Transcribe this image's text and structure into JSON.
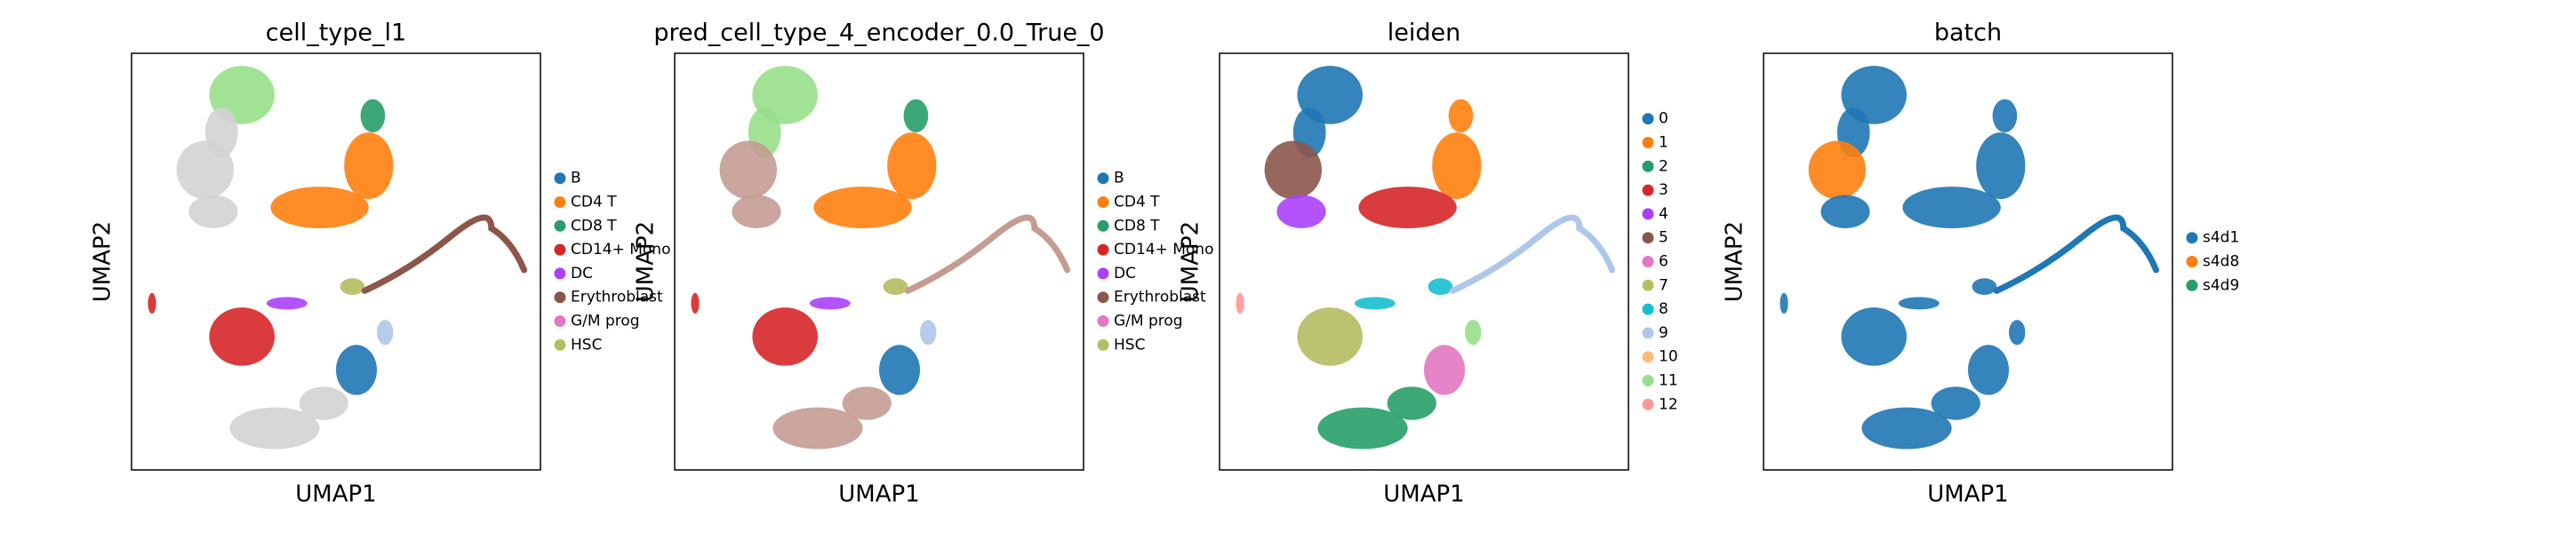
{
  "chart_data": [
    {
      "type": "scatter",
      "title": "cell_type_l1",
      "xlabel": "UMAP1",
      "ylabel": "UMAP2",
      "series": [
        {
          "name": "B",
          "color": "#1f77b4"
        },
        {
          "name": "CD4 T",
          "color": "#ff7f0e"
        },
        {
          "name": "CD8 T",
          "color": "#279e68"
        },
        {
          "name": "CD14+ Mono",
          "color": "#d62728"
        },
        {
          "name": "DC",
          "color": "#aa40fc"
        },
        {
          "name": "Erythroblast",
          "color": "#8c564b"
        },
        {
          "name": "G/M prog",
          "color": "#e377c2"
        },
        {
          "name": "HSC",
          "color": "#b5bd61"
        }
      ]
    },
    {
      "type": "scatter",
      "title": "pred_cell_type_4_encoder_0.0_True_0",
      "xlabel": "UMAP1",
      "ylabel": "UMAP2",
      "series": [
        {
          "name": "B",
          "color": "#1f77b4"
        },
        {
          "name": "CD4 T",
          "color": "#ff7f0e"
        },
        {
          "name": "CD8 T",
          "color": "#279e68"
        },
        {
          "name": "CD14+ Mono",
          "color": "#d62728"
        },
        {
          "name": "DC",
          "color": "#aa40fc"
        },
        {
          "name": "Erythroblast",
          "color": "#8c564b"
        },
        {
          "name": "G/M prog",
          "color": "#e377c2"
        },
        {
          "name": "HSC",
          "color": "#b5bd61"
        }
      ]
    },
    {
      "type": "scatter",
      "title": "leiden",
      "xlabel": "UMAP1",
      "ylabel": "UMAP2",
      "series": [
        {
          "name": "0",
          "color": "#1f77b4"
        },
        {
          "name": "1",
          "color": "#ff7f0e"
        },
        {
          "name": "2",
          "color": "#279e68"
        },
        {
          "name": "3",
          "color": "#d62728"
        },
        {
          "name": "4",
          "color": "#aa40fc"
        },
        {
          "name": "5",
          "color": "#8c564b"
        },
        {
          "name": "6",
          "color": "#e377c2"
        },
        {
          "name": "7",
          "color": "#b5bd61"
        },
        {
          "name": "8",
          "color": "#17becf"
        },
        {
          "name": "9",
          "color": "#aec7e8"
        },
        {
          "name": "10",
          "color": "#ffbb78"
        },
        {
          "name": "11",
          "color": "#98df8a"
        },
        {
          "name": "12",
          "color": "#ff9896"
        }
      ]
    },
    {
      "type": "scatter",
      "title": "batch",
      "xlabel": "UMAP1",
      "ylabel": "UMAP2",
      "series": [
        {
          "name": "s4d1",
          "color": "#1f77b4"
        },
        {
          "name": "s4d8",
          "color": "#ff7f0e"
        },
        {
          "name": "s4d9",
          "color": "#279e68"
        }
      ]
    }
  ]
}
